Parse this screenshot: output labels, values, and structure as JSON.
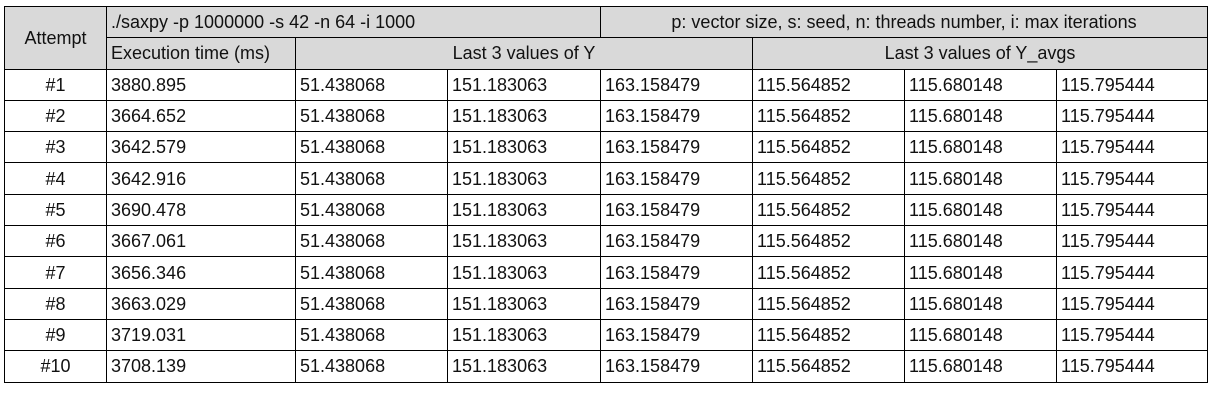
{
  "header": {
    "attempt_label": "Attempt",
    "command": "./saxpy -p 1000000 -s 42 -n 64 -i 1000",
    "legend": "p: vector size, s: seed, n: threads number, i: max iterations",
    "exec_time_label": "Execution time (ms)",
    "y_label": "Last 3 values of Y",
    "y_avgs_label": "Last 3 values of Y_avgs"
  },
  "rows": [
    {
      "attempt": "#1",
      "time": "3880.895",
      "y1": "51.438068",
      "y2": "151.183063",
      "y3": "163.158479",
      "a1": "115.564852",
      "a2": "115.680148",
      "a3": "115.795444"
    },
    {
      "attempt": "#2",
      "time": "3664.652",
      "y1": "51.438068",
      "y2": "151.183063",
      "y3": "163.158479",
      "a1": "115.564852",
      "a2": "115.680148",
      "a3": "115.795444"
    },
    {
      "attempt": "#3",
      "time": "3642.579",
      "y1": "51.438068",
      "y2": "151.183063",
      "y3": "163.158479",
      "a1": "115.564852",
      "a2": "115.680148",
      "a3": "115.795444"
    },
    {
      "attempt": "#4",
      "time": "3642.916",
      "y1": "51.438068",
      "y2": "151.183063",
      "y3": "163.158479",
      "a1": "115.564852",
      "a2": "115.680148",
      "a3": "115.795444"
    },
    {
      "attempt": "#5",
      "time": "3690.478",
      "y1": "51.438068",
      "y2": "151.183063",
      "y3": "163.158479",
      "a1": "115.564852",
      "a2": "115.680148",
      "a3": "115.795444"
    },
    {
      "attempt": "#6",
      "time": "3667.061",
      "y1": "51.438068",
      "y2": "151.183063",
      "y3": "163.158479",
      "a1": "115.564852",
      "a2": "115.680148",
      "a3": "115.795444"
    },
    {
      "attempt": "#7",
      "time": "3656.346",
      "y1": "51.438068",
      "y2": "151.183063",
      "y3": "163.158479",
      "a1": "115.564852",
      "a2": "115.680148",
      "a3": "115.795444"
    },
    {
      "attempt": "#8",
      "time": "3663.029",
      "y1": "51.438068",
      "y2": "151.183063",
      "y3": "163.158479",
      "a1": "115.564852",
      "a2": "115.680148",
      "a3": "115.795444"
    },
    {
      "attempt": "#9",
      "time": "3719.031",
      "y1": "51.438068",
      "y2": "151.183063",
      "y3": "163.158479",
      "a1": "115.564852",
      "a2": "115.680148",
      "a3": "115.795444"
    },
    {
      "attempt": "#10",
      "time": "3708.139",
      "y1": "51.438068",
      "y2": "151.183063",
      "y3": "163.158479",
      "a1": "115.564852",
      "a2": "115.680148",
      "a3": "115.795444"
    }
  ]
}
